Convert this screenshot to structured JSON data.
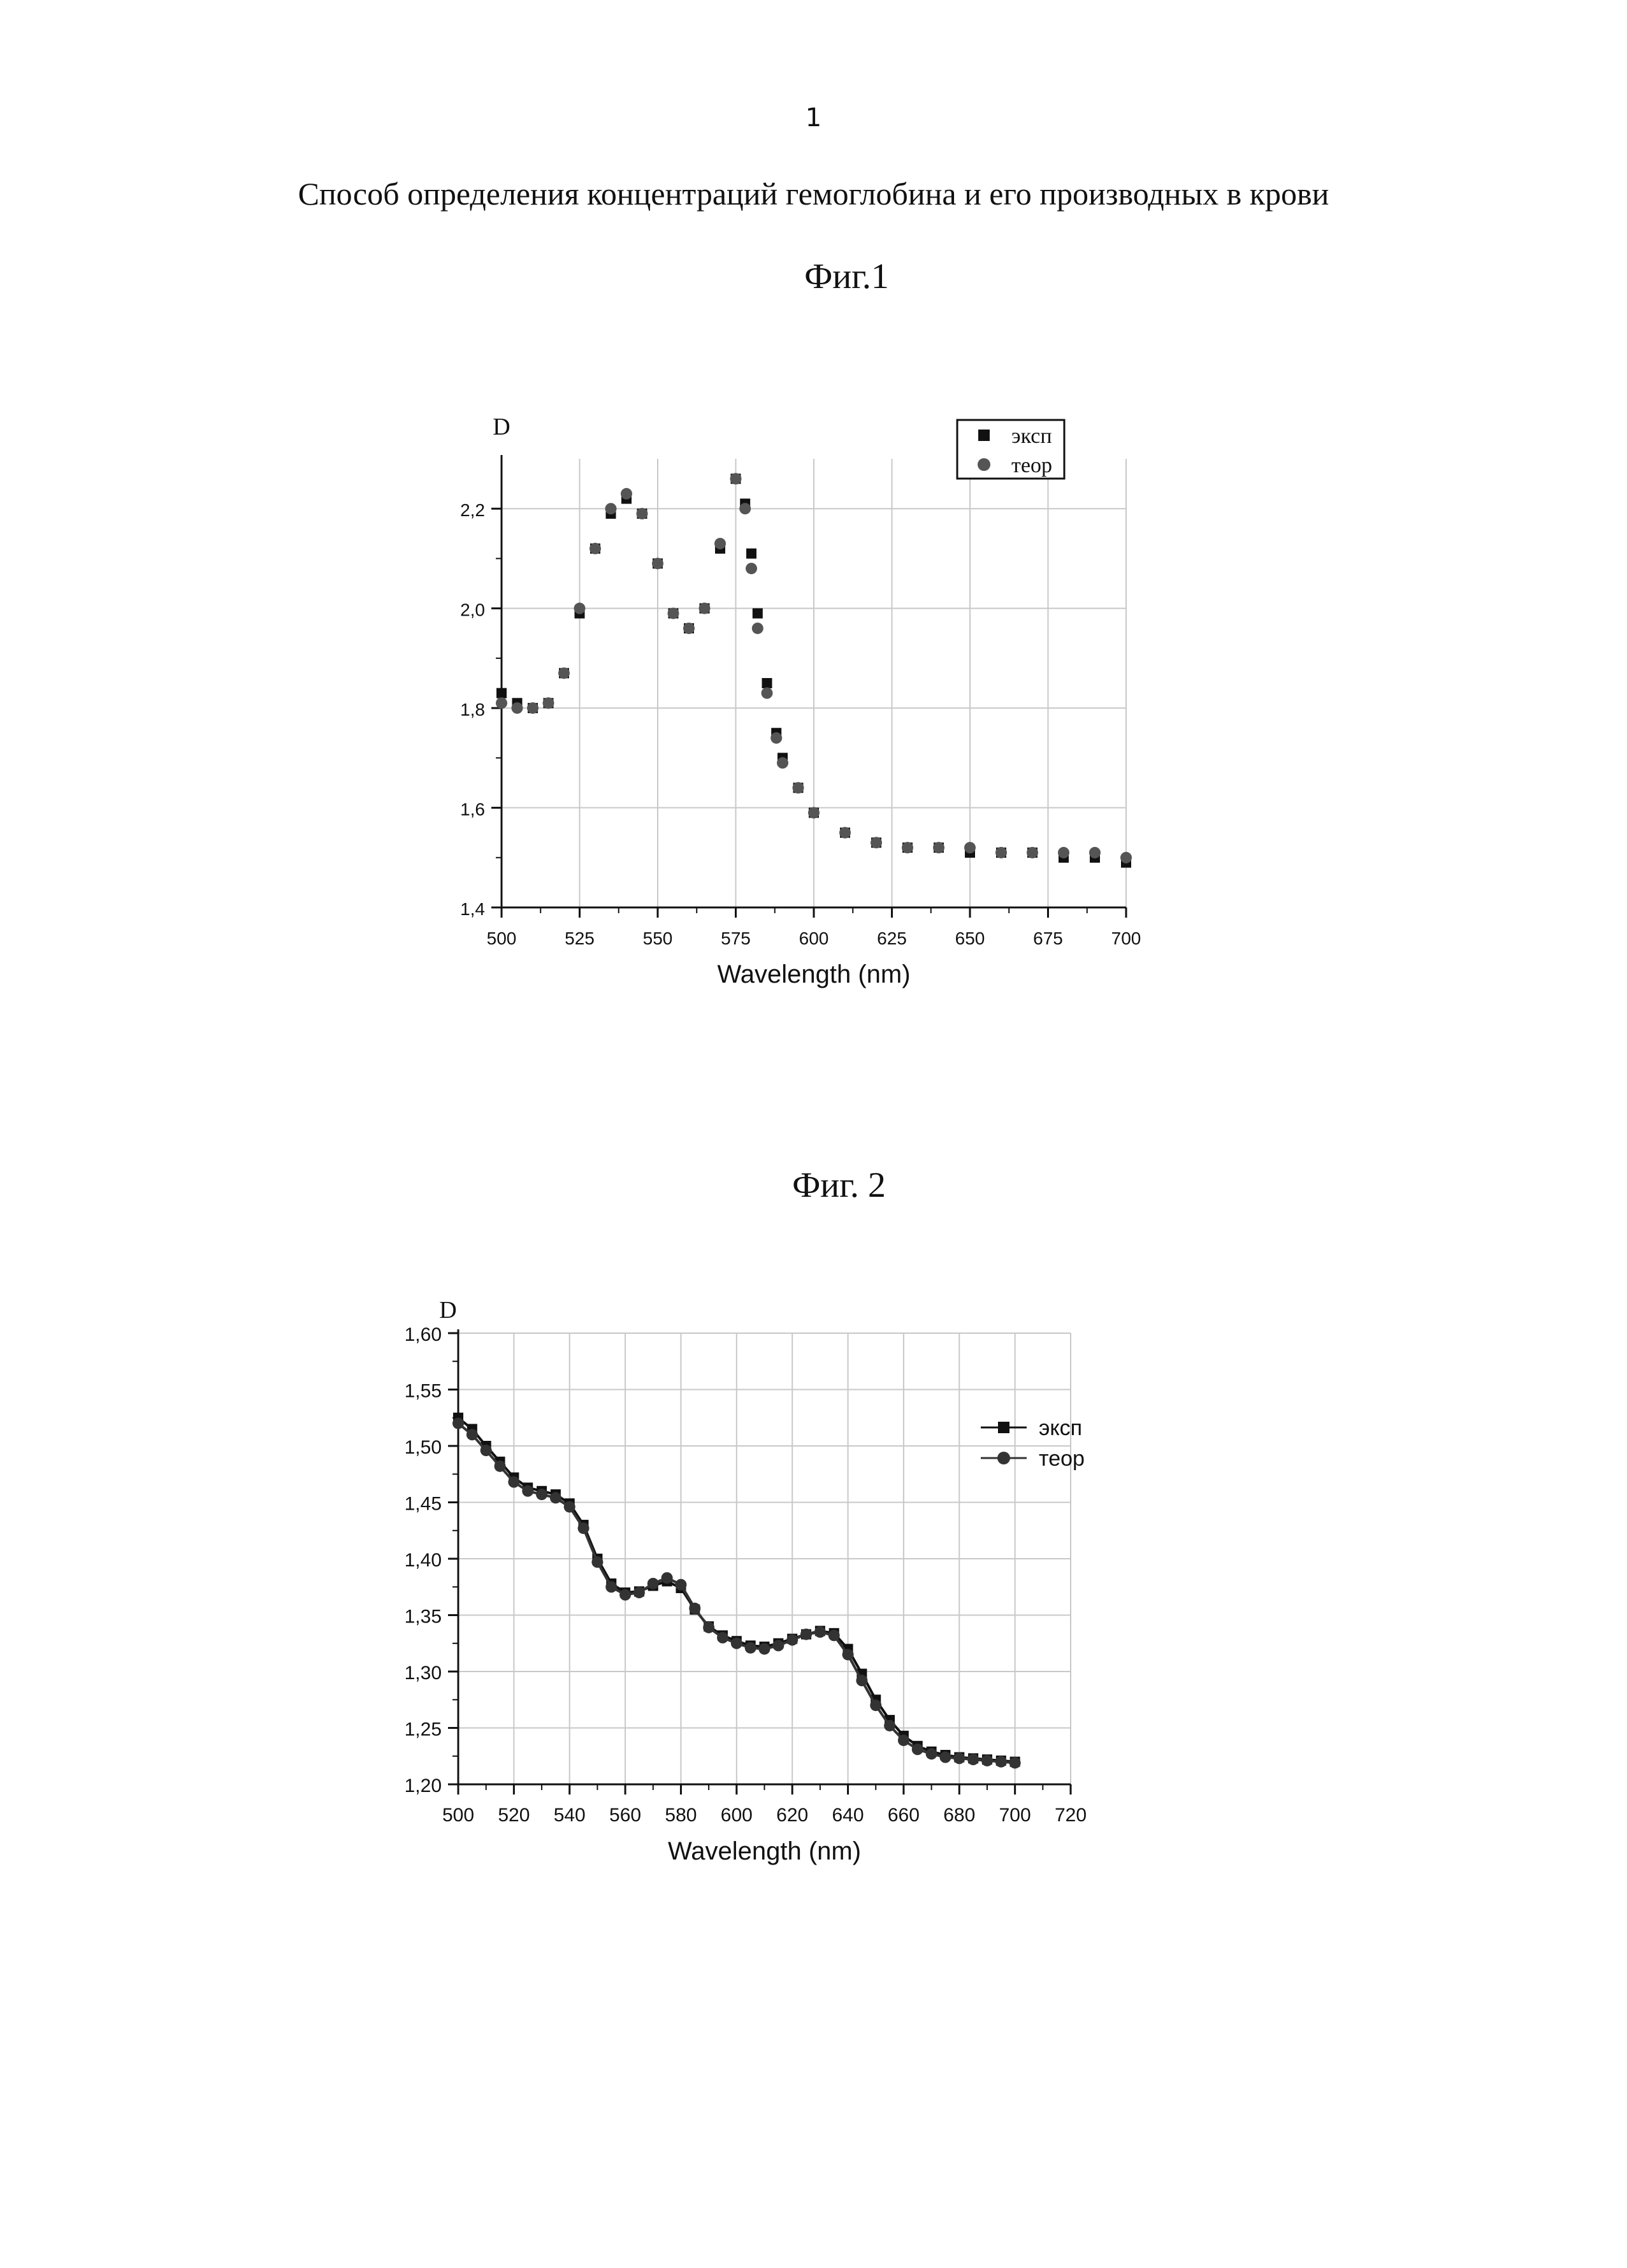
{
  "page_number": "1",
  "document_title": "Способ определения концентраций гемоглобина и его производных в крови",
  "figures": [
    {
      "caption": "Фиг.1"
    },
    {
      "caption": "Фиг. 2"
    }
  ],
  "chart_data": [
    {
      "type": "scatter",
      "xlabel": "Wavelength (nm)",
      "ylabel": "D",
      "xlim": [
        500,
        700
      ],
      "ylim": [
        1.4,
        2.3
      ],
      "xticks": [
        500,
        525,
        550,
        575,
        600,
        625,
        650,
        675,
        700
      ],
      "xtick_labels": [
        "500",
        "525",
        "550",
        "575",
        "600",
        "625",
        "650",
        "675",
        "700"
      ],
      "yticks": [
        1.4,
        1.6,
        1.8,
        2.0,
        2.2
      ],
      "ytick_labels": [
        "1,4",
        "1,6",
        "1,8",
        "2,0",
        "2,2"
      ],
      "grid": true,
      "legend_position": "top-right",
      "series": [
        {
          "name": "эксп",
          "marker": "square",
          "color": "#111111",
          "x": [
            500,
            505,
            510,
            515,
            520,
            525,
            530,
            535,
            540,
            545,
            550,
            555,
            560,
            565,
            570,
            575,
            578,
            580,
            582,
            585,
            588,
            590,
            595,
            600,
            610,
            620,
            630,
            640,
            650,
            660,
            670,
            680,
            690,
            700
          ],
          "y": [
            1.83,
            1.81,
            1.8,
            1.81,
            1.87,
            1.99,
            2.12,
            2.19,
            2.22,
            2.19,
            2.09,
            1.99,
            1.96,
            2.0,
            2.12,
            2.26,
            2.21,
            2.11,
            1.99,
            1.85,
            1.75,
            1.7,
            1.64,
            1.59,
            1.55,
            1.53,
            1.52,
            1.52,
            1.51,
            1.51,
            1.51,
            1.5,
            1.5,
            1.49
          ]
        },
        {
          "name": "теор",
          "marker": "circle",
          "color": "#555555",
          "x": [
            500,
            505,
            510,
            515,
            520,
            525,
            530,
            535,
            540,
            545,
            550,
            555,
            560,
            565,
            570,
            575,
            578,
            580,
            582,
            585,
            588,
            590,
            595,
            600,
            610,
            620,
            630,
            640,
            650,
            660,
            670,
            680,
            690,
            700
          ],
          "y": [
            1.81,
            1.8,
            1.8,
            1.81,
            1.87,
            2.0,
            2.12,
            2.2,
            2.23,
            2.19,
            2.09,
            1.99,
            1.96,
            2.0,
            2.13,
            2.26,
            2.2,
            2.08,
            1.96,
            1.83,
            1.74,
            1.69,
            1.64,
            1.59,
            1.55,
            1.53,
            1.52,
            1.52,
            1.52,
            1.51,
            1.51,
            1.51,
            1.51,
            1.5
          ]
        }
      ]
    },
    {
      "type": "line",
      "xlabel": "Wavelength (nm)",
      "ylabel": "D",
      "xlim": [
        500,
        720
      ],
      "ylim": [
        1.2,
        1.6
      ],
      "xticks": [
        500,
        520,
        540,
        560,
        580,
        600,
        620,
        640,
        660,
        680,
        700,
        720
      ],
      "xtick_labels": [
        "500",
        "520",
        "540",
        "560",
        "580",
        "600",
        "620",
        "640",
        "660",
        "680",
        "700",
        "720"
      ],
      "yticks": [
        1.2,
        1.25,
        1.3,
        1.35,
        1.4,
        1.45,
        1.5,
        1.55,
        1.6
      ],
      "ytick_labels": [
        "1,20",
        "1,25",
        "1,30",
        "1,35",
        "1,40",
        "1,45",
        "1,50",
        "1,55",
        "1,60"
      ],
      "grid": true,
      "legend_position": "right",
      "series": [
        {
          "name": "эксп",
          "marker": "square",
          "color": "#111111",
          "x": [
            500,
            505,
            510,
            515,
            520,
            525,
            530,
            535,
            540,
            545,
            550,
            555,
            560,
            565,
            570,
            575,
            580,
            585,
            590,
            595,
            600,
            605,
            610,
            615,
            620,
            625,
            630,
            635,
            640,
            645,
            650,
            655,
            660,
            665,
            670,
            675,
            680,
            685,
            690,
            695,
            700
          ],
          "y": [
            1.525,
            1.515,
            1.5,
            1.486,
            1.472,
            1.463,
            1.46,
            1.457,
            1.449,
            1.43,
            1.4,
            1.378,
            1.37,
            1.371,
            1.376,
            1.38,
            1.374,
            1.355,
            1.34,
            1.332,
            1.327,
            1.323,
            1.322,
            1.325,
            1.329,
            1.333,
            1.336,
            1.334,
            1.32,
            1.298,
            1.275,
            1.257,
            1.243,
            1.234,
            1.229,
            1.226,
            1.224,
            1.223,
            1.222,
            1.221,
            1.22
          ]
        },
        {
          "name": "теор",
          "marker": "circle",
          "color": "#333333",
          "x": [
            500,
            505,
            510,
            515,
            520,
            525,
            530,
            535,
            540,
            545,
            550,
            555,
            560,
            565,
            570,
            575,
            580,
            585,
            590,
            595,
            600,
            605,
            610,
            615,
            620,
            625,
            630,
            635,
            640,
            645,
            650,
            655,
            660,
            665,
            670,
            675,
            680,
            685,
            690,
            695,
            700
          ],
          "y": [
            1.52,
            1.51,
            1.496,
            1.482,
            1.468,
            1.46,
            1.457,
            1.454,
            1.446,
            1.427,
            1.397,
            1.375,
            1.368,
            1.37,
            1.378,
            1.383,
            1.377,
            1.356,
            1.339,
            1.33,
            1.325,
            1.321,
            1.32,
            1.323,
            1.328,
            1.333,
            1.335,
            1.332,
            1.315,
            1.292,
            1.27,
            1.252,
            1.239,
            1.231,
            1.227,
            1.224,
            1.223,
            1.222,
            1.221,
            1.22,
            1.219
          ]
        }
      ]
    }
  ]
}
